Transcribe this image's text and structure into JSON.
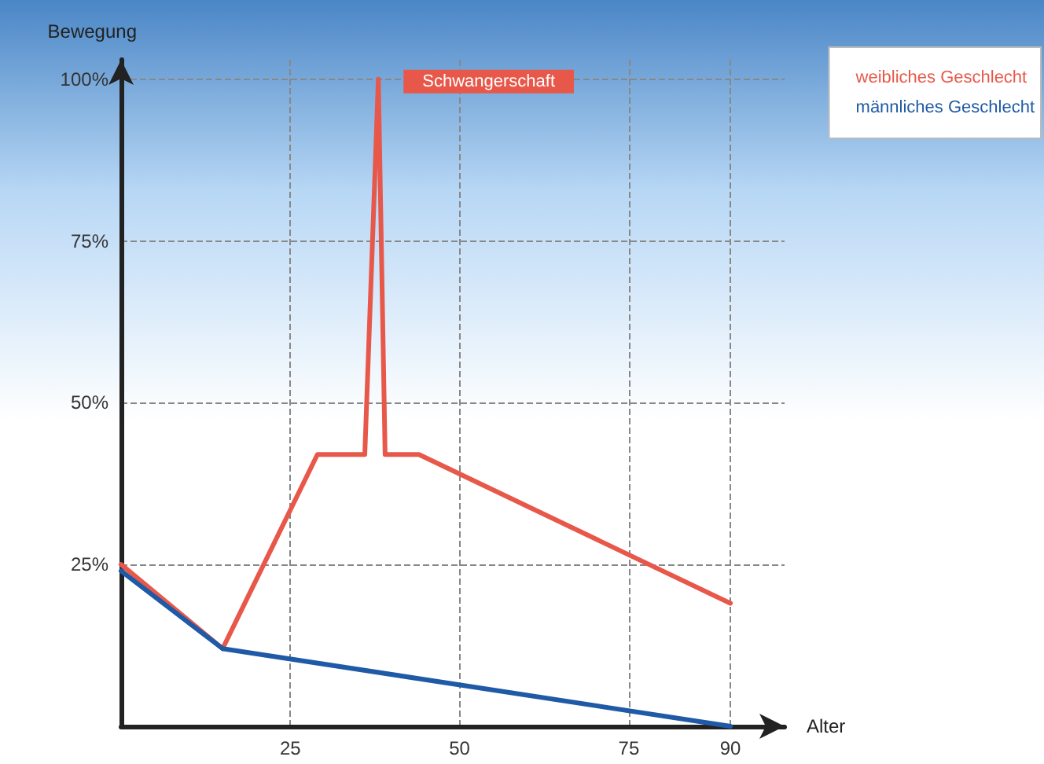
{
  "chart_data": {
    "type": "line",
    "xlabel": "Alter",
    "ylabel": "Bewegung",
    "xlim": [
      0,
      98
    ],
    "xticks": [
      25,
      50,
      75,
      90
    ],
    "ylim": [
      0,
      103
    ],
    "yticks": [
      {
        "value": 25,
        "label": "25%"
      },
      {
        "value": 50,
        "label": "50%"
      },
      {
        "value": 75,
        "label": "75%"
      },
      {
        "value": 100,
        "label": "100%"
      }
    ],
    "series": [
      {
        "name": "weibliches Geschlecht",
        "color": "#e8584a",
        "x": [
          0,
          15,
          29,
          36,
          38,
          39,
          44,
          90
        ],
        "values": [
          25,
          12,
          42,
          42,
          100,
          42,
          42,
          19
        ]
      },
      {
        "name": "männliches Geschlecht",
        "color": "#1f5aa6",
        "x": [
          0,
          15,
          90
        ],
        "values": [
          24,
          12,
          0
        ]
      }
    ],
    "annotations": [
      {
        "text": "Schwangerschaft",
        "x": 38,
        "y": 100
      }
    ],
    "grid": true,
    "legend": "top right",
    "marker": "none",
    "line_style": "solid"
  }
}
